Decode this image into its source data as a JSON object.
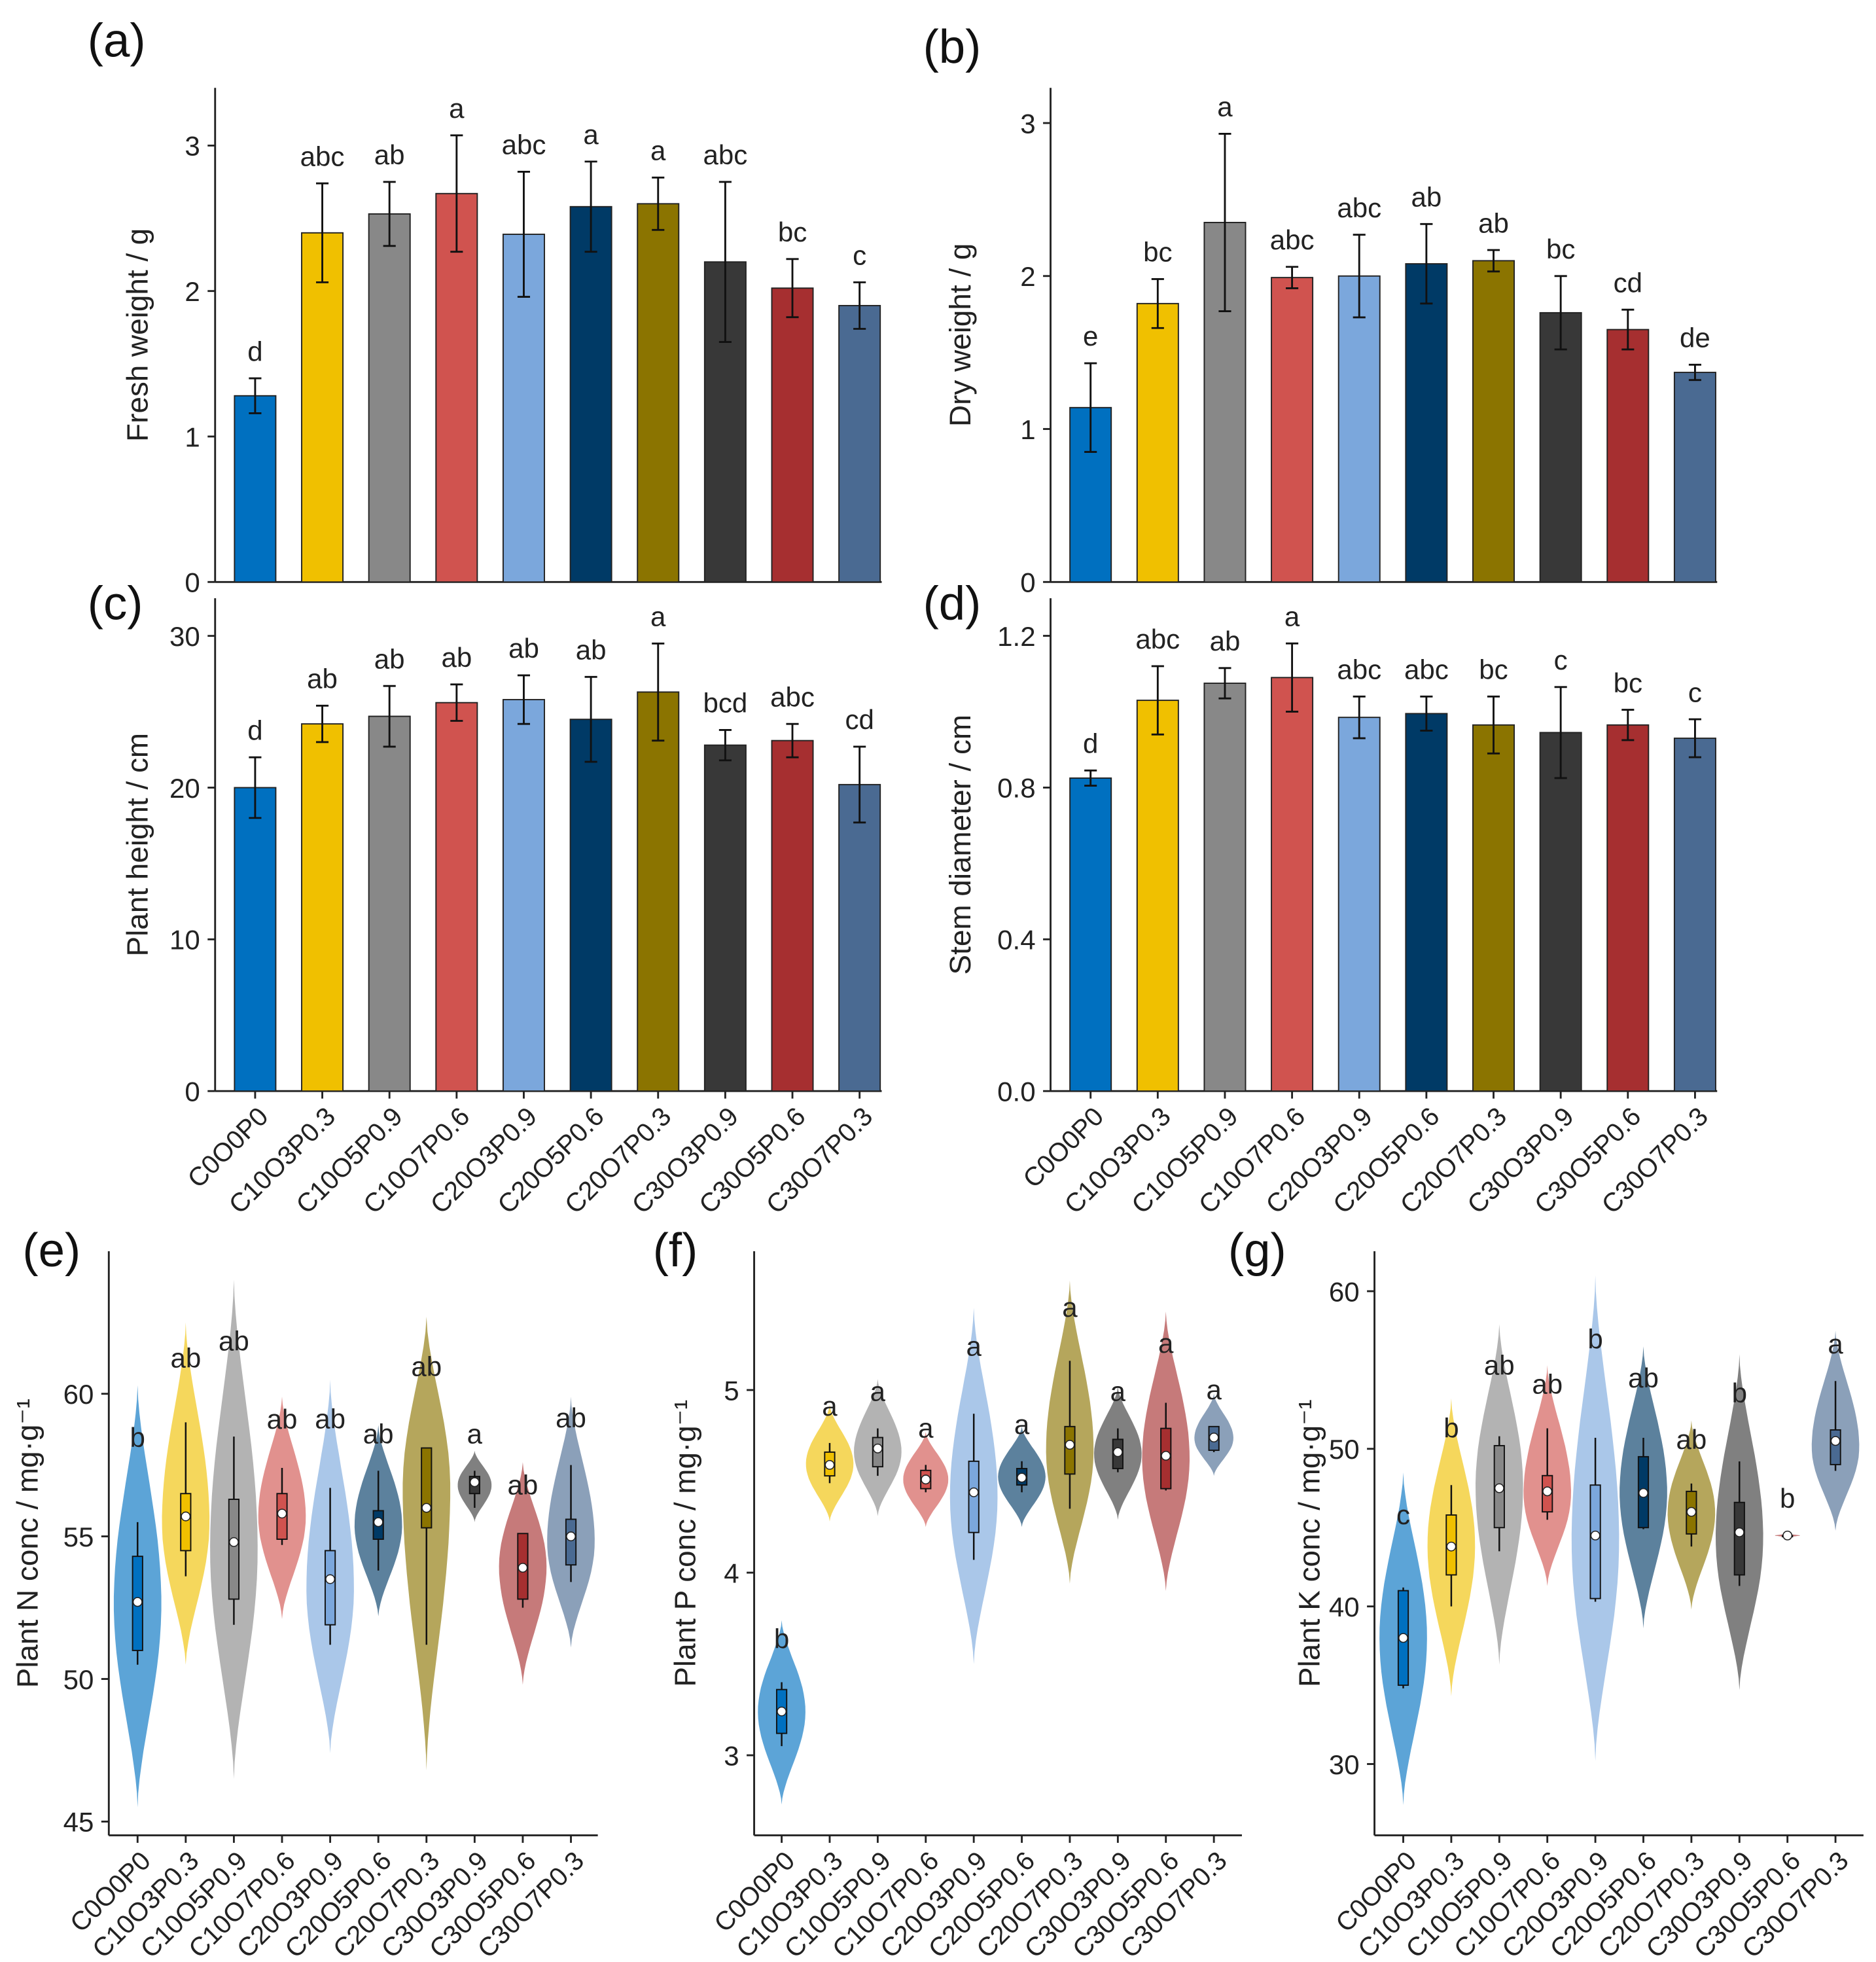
{
  "categories": [
    "C0O0P0",
    "C10O3P0.3",
    "C10O5P0.9",
    "C10O7P0.6",
    "C20O3P0.9",
    "C20O5P0.6",
    "C20O7P0.3",
    "C30O3P0.9",
    "C30O5P0.6",
    "C30O7P0.3"
  ],
  "colors": [
    "#0070c0",
    "#f0c000",
    "#888888",
    "#d0534f",
    "#7ba7dc",
    "#003a66",
    "#8b7400",
    "#383838",
    "#a62f30",
    "#4a6a92"
  ],
  "chart_data": [
    {
      "panel": "(a)",
      "type": "bar",
      "ylabel": "Fresh weight / g",
      "ylim": [
        0,
        3.3
      ],
      "yticks": [
        "0",
        "1",
        "2",
        "3"
      ],
      "ytick_values": [
        0,
        1,
        2,
        3
      ],
      "values": [
        1.28,
        2.4,
        2.53,
        2.67,
        2.39,
        2.58,
        2.6,
        2.2,
        2.02,
        1.9
      ],
      "errors": [
        0.12,
        0.34,
        0.22,
        0.4,
        0.43,
        0.31,
        0.18,
        0.55,
        0.2,
        0.16
      ],
      "letters": [
        "d",
        "abc",
        "ab",
        "a",
        "abc",
        "a",
        "a",
        "abc",
        "bc",
        "c"
      ]
    },
    {
      "panel": "(b)",
      "type": "bar",
      "ylabel": "Dry weight / g",
      "ylim": [
        0,
        3.2
      ],
      "yticks": [
        "0",
        "1",
        "2",
        "3"
      ],
      "ytick_values": [
        0,
        1,
        2,
        3
      ],
      "values": [
        1.14,
        1.82,
        2.35,
        1.99,
        2.0,
        2.08,
        2.1,
        1.76,
        1.65,
        1.37
      ],
      "errors": [
        0.29,
        0.16,
        0.58,
        0.07,
        0.27,
        0.26,
        0.07,
        0.24,
        0.13,
        0.05
      ],
      "letters": [
        "e",
        "bc",
        "a",
        "abc",
        "abc",
        "ab",
        "ab",
        "bc",
        "cd",
        "de"
      ]
    },
    {
      "panel": "(c)",
      "type": "bar",
      "ylabel": "Plant height / cm",
      "ylim": [
        0,
        30
      ],
      "yticks": [
        "0",
        "10",
        "20",
        "30"
      ],
      "ytick_values": [
        0,
        10,
        20,
        30
      ],
      "values": [
        20.0,
        24.2,
        24.7,
        25.6,
        25.8,
        24.5,
        26.3,
        22.8,
        23.1,
        20.2
      ],
      "errors": [
        2.0,
        1.2,
        2.0,
        1.2,
        1.6,
        2.8,
        3.2,
        1.0,
        1.1,
        2.5
      ],
      "letters": [
        "d",
        "ab",
        "ab",
        "ab",
        "ab",
        "ab",
        "a",
        "bcd",
        "abc",
        "cd"
      ]
    },
    {
      "panel": "(d)",
      "type": "bar",
      "ylabel": "Stem diameter / cm",
      "ylim": [
        0,
        1.2
      ],
      "yticks": [
        "0.0",
        "0.4",
        "0.8",
        "1.2"
      ],
      "ytick_values": [
        0,
        0.4,
        0.8,
        1.2
      ],
      "values": [
        0.825,
        1.03,
        1.075,
        1.09,
        0.985,
        0.995,
        0.965,
        0.945,
        0.965,
        0.93
      ],
      "errors": [
        0.02,
        0.09,
        0.04,
        0.09,
        0.055,
        0.045,
        0.075,
        0.12,
        0.04,
        0.05
      ],
      "letters": [
        "d",
        "abc",
        "ab",
        "a",
        "abc",
        "abc",
        "bc",
        "c",
        "bc",
        "c"
      ]
    },
    {
      "panel": "(e)",
      "type": "violin",
      "ylabel": "Plant N conc / mg·g⁻¹",
      "yticks": [
        "45",
        "50",
        "55",
        "60"
      ],
      "ytick_values": [
        45,
        50,
        55,
        60
      ],
      "mean": [
        52.7,
        55.7,
        54.8,
        55.8,
        53.5,
        55.5,
        56.0,
        56.9,
        53.9,
        55.0
      ],
      "q1": [
        51.0,
        54.5,
        52.8,
        54.9,
        51.9,
        54.9,
        55.3,
        56.5,
        52.8,
        54.0
      ],
      "q3": [
        54.3,
        56.5,
        56.3,
        56.5,
        54.5,
        55.9,
        58.1,
        57.1,
        55.1,
        55.6
      ],
      "whisker_low": [
        50.5,
        53.6,
        51.9,
        54.7,
        51.2,
        53.8,
        51.2,
        56.0,
        52.5,
        53.4
      ],
      "whisker_high": [
        55.5,
        59.0,
        58.5,
        57.4,
        56.7,
        57.3,
        58.1,
        57.3,
        55.1,
        57.5
      ],
      "violin_min": [
        45.5,
        50.5,
        46.5,
        52.1,
        47.4,
        52.2,
        46.8,
        55.5,
        49.8,
        51.1
      ],
      "violin_max": [
        60.3,
        62.5,
        64.0,
        59.9,
        60.5,
        58.9,
        62.7,
        58.0,
        57.6,
        59.9
      ],
      "letters": [
        "b",
        "ab",
        "ab",
        "ab",
        "ab",
        "ab",
        "ab",
        "a",
        "ab",
        "ab"
      ]
    },
    {
      "panel": "(f)",
      "type": "violin",
      "ylabel": "Plant P conc / mg·g⁻¹",
      "yticks": [
        "3",
        "4",
        "5"
      ],
      "ytick_values": [
        3,
        4,
        5
      ],
      "mean": [
        3.24,
        4.59,
        4.68,
        4.51,
        4.44,
        4.52,
        4.7,
        4.66,
        4.64,
        4.74
      ],
      "q1": [
        3.12,
        4.53,
        4.58,
        4.46,
        4.22,
        4.48,
        4.54,
        4.57,
        4.46,
        4.67
      ],
      "q3": [
        3.36,
        4.66,
        4.74,
        4.56,
        4.61,
        4.57,
        4.8,
        4.73,
        4.79,
        4.8
      ],
      "whisker_low": [
        3.05,
        4.49,
        4.53,
        4.44,
        4.07,
        4.44,
        4.35,
        4.55,
        4.45,
        4.66
      ],
      "whisker_high": [
        3.4,
        4.71,
        4.79,
        4.59,
        4.87,
        4.61,
        5.16,
        4.79,
        4.93,
        4.8
      ],
      "violin_min": [
        2.73,
        4.28,
        4.31,
        4.25,
        3.5,
        4.25,
        3.94,
        4.29,
        3.9,
        4.53
      ],
      "violin_max": [
        3.74,
        4.92,
        5.06,
        4.77,
        5.45,
        4.8,
        5.6,
        5.02,
        5.43,
        4.98
      ],
      "letters": [
        "b",
        "a",
        "a",
        "a",
        "a",
        "a",
        "a",
        "a",
        "a",
        "a"
      ]
    },
    {
      "panel": "(g)",
      "type": "violin",
      "ylabel": "Plant K conc / mg·g⁻¹",
      "yticks": [
        "30",
        "40",
        "50",
        "60"
      ],
      "ytick_values": [
        30,
        40,
        50,
        60
      ],
      "mean": [
        38.0,
        43.8,
        47.5,
        47.3,
        44.5,
        47.2,
        46.0,
        44.7,
        44.5,
        50.5
      ],
      "q1": [
        35.0,
        42.0,
        45.0,
        46.0,
        40.5,
        45.0,
        44.6,
        42.0,
        44.5,
        49.0
      ],
      "q3": [
        41.0,
        45.8,
        50.2,
        48.3,
        47.7,
        49.5,
        47.3,
        46.6,
        44.5,
        51.2
      ],
      "whisker_low": [
        34.8,
        40.0,
        43.5,
        45.5,
        40.3,
        44.9,
        43.8,
        41.3,
        44.5,
        48.6
      ],
      "whisker_high": [
        41.2,
        47.7,
        50.8,
        51.3,
        50.7,
        50.7,
        47.8,
        49.2,
        44.5,
        54.3
      ],
      "violin_min": [
        27.4,
        34.3,
        36.3,
        41.3,
        30.2,
        38.6,
        39.8,
        34.7,
        44.4,
        44.8
      ],
      "violin_max": [
        48.5,
        53.2,
        57.9,
        55.3,
        61.0,
        56.5,
        51.8,
        56.0,
        44.6,
        57.5
      ],
      "letters": [
        "c",
        "b",
        "ab",
        "ab",
        "b",
        "ab",
        "ab",
        "b",
        "b",
        "a"
      ]
    }
  ]
}
